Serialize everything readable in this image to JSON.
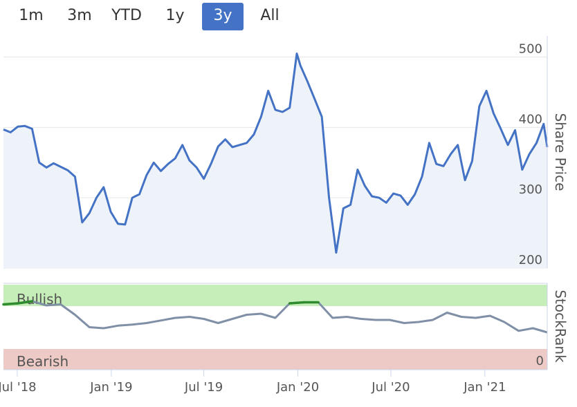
{
  "range_selector": {
    "buttons": [
      "1m",
      "3m",
      "YTD",
      "1y",
      "3y",
      "All"
    ],
    "active": "3y"
  },
  "colors": {
    "price_line": "#4472c4",
    "rank_line": "#7f8fa6",
    "rank_bullish_line": "#2e8b2e",
    "bullish_band": "#c6eeb8",
    "bearish_band": "#edcac5",
    "bullish_text": "#2e8b2e",
    "bearish_text": "#d04040"
  },
  "chart_data": [
    {
      "type": "line",
      "ylabel": "Share Price",
      "ylim": [
        200,
        530
      ],
      "yticks": [
        200,
        300,
        400,
        500
      ],
      "x": [
        "2018-06-04",
        "2018-06-18",
        "2018-07-02",
        "2018-07-16",
        "2018-07-30",
        "2018-08-13",
        "2018-08-27",
        "2018-09-10",
        "2018-09-24",
        "2018-10-08",
        "2018-10-22",
        "2018-11-05",
        "2018-11-19",
        "2018-12-03",
        "2018-12-17",
        "2018-12-31",
        "2019-01-14",
        "2019-01-28",
        "2019-02-11",
        "2019-02-25",
        "2019-03-11",
        "2019-03-25",
        "2019-04-08",
        "2019-04-22",
        "2019-05-06",
        "2019-05-20",
        "2019-06-03",
        "2019-06-17",
        "2019-07-01",
        "2019-07-15",
        "2019-07-29",
        "2019-08-12",
        "2019-08-26",
        "2019-09-09",
        "2019-09-23",
        "2019-10-07",
        "2019-10-21",
        "2019-11-04",
        "2019-11-18",
        "2019-12-02",
        "2019-12-16",
        "2019-12-30",
        "2020-01-06",
        "2020-01-20",
        "2020-02-03",
        "2020-02-17",
        "2020-03-02",
        "2020-03-16",
        "2020-03-30",
        "2020-04-13",
        "2020-04-27",
        "2020-05-11",
        "2020-05-25",
        "2020-06-08",
        "2020-06-22",
        "2020-07-06",
        "2020-07-20",
        "2020-08-03",
        "2020-08-17",
        "2020-08-31",
        "2020-09-14",
        "2020-09-28",
        "2020-10-12",
        "2020-10-26",
        "2020-11-09",
        "2020-11-23",
        "2020-12-07",
        "2020-12-21",
        "2021-01-04",
        "2021-01-18",
        "2021-02-01",
        "2021-02-15",
        "2021-03-01",
        "2021-03-15",
        "2021-03-29",
        "2021-04-12",
        "2021-04-26",
        "2021-05-03"
      ],
      "series": [
        {
          "values": [
            397,
            393,
            401,
            402,
            398,
            350,
            343,
            349,
            344,
            339,
            330,
            265,
            278,
            300,
            315,
            280,
            263,
            262,
            300,
            305,
            332,
            350,
            338,
            348,
            356,
            375,
            353,
            343,
            327,
            348,
            373,
            383,
            372,
            375,
            378,
            390,
            415,
            452,
            425,
            422,
            428,
            505,
            488,
            465,
            440,
            415,
            300,
            222,
            285,
            290,
            340,
            317,
            302,
            300,
            293,
            306,
            303,
            290,
            305,
            330,
            378,
            348,
            345,
            362,
            375,
            325,
            352,
            430,
            452,
            420,
            398,
            375,
            396,
            340,
            362,
            378,
            405,
            372
          ],
          "color": "#4472c4"
        }
      ]
    },
    {
      "type": "line",
      "ylabel": "StockRank",
      "yticks": [
        0
      ],
      "ylim": [
        0,
        100
      ],
      "x": [
        "2018-06-04",
        "2018-07-02",
        "2018-07-30",
        "2018-08-27",
        "2018-09-24",
        "2018-10-22",
        "2018-11-19",
        "2018-12-17",
        "2019-01-14",
        "2019-02-11",
        "2019-03-11",
        "2019-04-08",
        "2019-05-06",
        "2019-06-03",
        "2019-07-01",
        "2019-07-29",
        "2019-08-26",
        "2019-09-23",
        "2019-10-21",
        "2019-11-18",
        "2019-12-16",
        "2020-01-13",
        "2020-02-10",
        "2020-03-09",
        "2020-04-06",
        "2020-05-04",
        "2020-06-01",
        "2020-06-29",
        "2020-07-27",
        "2020-08-24",
        "2020-09-21",
        "2020-10-19",
        "2020-11-16",
        "2020-12-14",
        "2021-01-11",
        "2021-02-08",
        "2021-03-08",
        "2021-04-05",
        "2021-05-03"
      ],
      "series": [
        {
          "values": [
            86,
            88,
            92,
            84,
            86,
            66,
            42,
            40,
            45,
            47,
            50,
            55,
            60,
            62,
            58,
            50,
            58,
            66,
            68,
            60,
            88,
            90,
            90,
            60,
            62,
            58,
            56,
            56,
            50,
            52,
            56,
            70,
            62,
            60,
            64,
            52,
            35,
            40,
            32
          ],
          "color": "#7f8fa6"
        }
      ],
      "bands": [
        {
          "label": "Bullish"
        },
        {
          "label": "Bearish"
        }
      ]
    }
  ],
  "x_axis": {
    "ticks": [
      "Jul '18",
      "Jan '19",
      "Jul '19",
      "Jan '20",
      "Jul '20",
      "Jan '21"
    ]
  }
}
